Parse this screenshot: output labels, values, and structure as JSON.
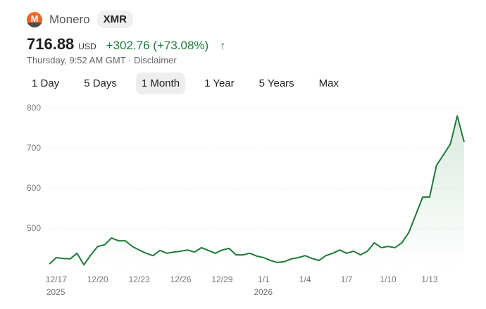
{
  "header": {
    "name": "Monero",
    "ticker": "XMR",
    "price": "716.88",
    "currency": "USD",
    "change": "+302.76 (+73.08%)",
    "timestamp": "Thursday, 9:52 AM GMT",
    "disclaimer": "Disclaimer"
  },
  "tabs": [
    "1 Day",
    "5 Days",
    "1 Month",
    "1 Year",
    "5 Years",
    "Max"
  ],
  "selected_tab": "1 Month",
  "chart_data": {
    "type": "line",
    "categories": [
      null,
      "12/17",
      null,
      null,
      null,
      null,
      null,
      "12/20",
      null,
      null,
      null,
      null,
      null,
      "12/23",
      null,
      null,
      null,
      null,
      null,
      "12/26",
      null,
      null,
      null,
      null,
      null,
      "12/29",
      null,
      null,
      null,
      null,
      null,
      "1/1",
      null,
      null,
      null,
      null,
      null,
      "1/4",
      null,
      null,
      null,
      null,
      null,
      "1/7",
      null,
      null,
      null,
      null,
      null,
      "1/10",
      null,
      null,
      null,
      null,
      null,
      "1/13",
      null,
      null,
      null,
      null,
      null
    ],
    "year_labels": {
      "12/17": "2025",
      "1/1": "2026"
    },
    "series": [
      {
        "name": "XMR",
        "color": "#1e7a3a",
        "values": [
          412,
          428,
          426,
          425,
          439,
          410,
          435,
          456,
          460,
          477,
          470,
          470,
          456,
          447,
          439,
          433,
          446,
          439,
          442,
          444,
          447,
          442,
          453,
          446,
          439,
          447,
          451,
          435,
          435,
          439,
          432,
          428,
          421,
          416,
          418,
          425,
          428,
          433,
          426,
          421,
          433,
          439,
          447,
          439,
          444,
          435,
          444,
          465,
          453,
          456,
          453,
          465,
          491,
          535,
          579,
          579,
          658,
          684,
          711,
          781,
          716
        ]
      }
    ],
    "ylim": [
      400,
      800
    ],
    "yticks": [
      500,
      600,
      700,
      800
    ],
    "grid": true
  }
}
